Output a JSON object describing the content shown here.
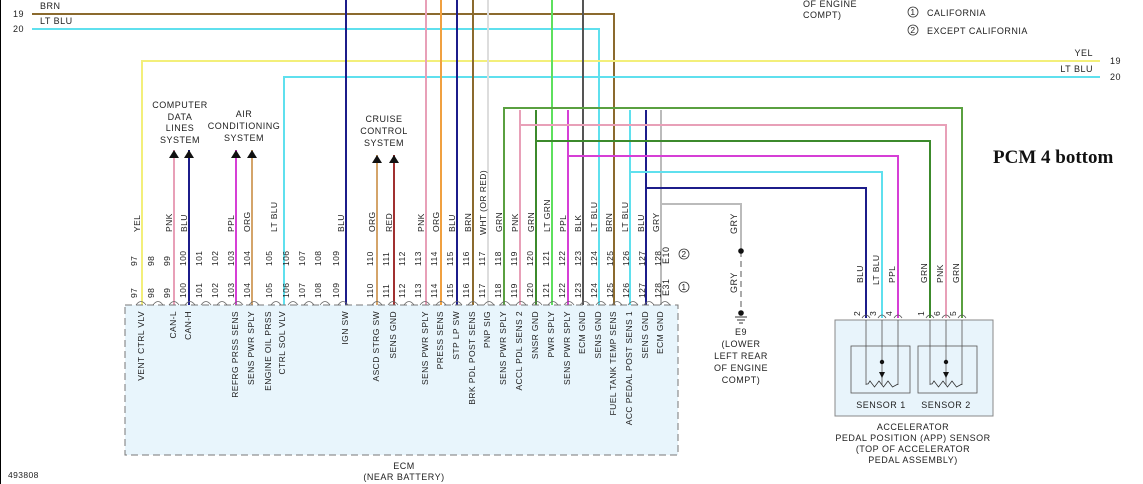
{
  "diagram_id": "493808",
  "overlay_label": "PCM 4 bottom",
  "legend": [
    {
      "marker": "1",
      "text": "CALIFORNIA"
    },
    {
      "marker": "2",
      "text": "EXCEPT CALIFORNIA"
    }
  ],
  "top_header_fragment": [
    "OF ENGINE",
    "COMPT)"
  ],
  "left_bus": [
    {
      "number": "19",
      "color_name": "BRN",
      "color": "#8b6a2e"
    },
    {
      "number": "20",
      "color_name": "LT BLU",
      "color": "#5fe0ee"
    }
  ],
  "right_bus": [
    {
      "number": "19",
      "color_name": "YEL",
      "color": "#f3ef7a"
    },
    {
      "number": "20",
      "color_name": "LT BLU",
      "color": "#5fe0ee"
    }
  ],
  "systems": [
    {
      "name": "computer-data-lines",
      "lines": [
        "COMPUTER",
        "DATA",
        "LINES",
        "SYSTEM"
      ]
    },
    {
      "name": "air-conditioning",
      "lines": [
        "AIR",
        "CONDITIONING",
        "SYSTEM"
      ]
    },
    {
      "name": "cruise-control",
      "lines": [
        "CRUISE",
        "CONTROL",
        "SYSTEM"
      ]
    }
  ],
  "ecm": {
    "title": "ECM",
    "location": "(NEAR BATTERY)",
    "pins": [
      {
        "pin": "97",
        "wire": "YEL",
        "color": "#f3ef7a",
        "function": "VENT CTRL VLV"
      },
      {
        "pin": "98",
        "wire": "",
        "color": "",
        "function": ""
      },
      {
        "pin": "99",
        "wire": "PNK",
        "color": "#e8a0b8",
        "function": "CAN-L"
      },
      {
        "pin": "100",
        "wire": "BLU",
        "color": "#1c1c8a",
        "function": "CAN-H"
      },
      {
        "pin": "101",
        "wire": "",
        "color": "",
        "function": ""
      },
      {
        "pin": "102",
        "wire": "",
        "color": "",
        "function": ""
      },
      {
        "pin": "103",
        "wire": "PPL",
        "color": "#d63fd6",
        "function": "REFRG PRSS SENS"
      },
      {
        "pin": "104",
        "wire": "ORG",
        "color": "#d4a46a",
        "function": "SENS PWR SPLY"
      },
      {
        "pin": "105",
        "wire": "LT BLU",
        "color": "#5fe0ee",
        "function": "ENGINE OIL PRSS|CTRL SOL VLV"
      },
      {
        "pin": "106",
        "wire": "",
        "color": "",
        "function": ""
      },
      {
        "pin": "107",
        "wire": "",
        "color": "",
        "function": ""
      },
      {
        "pin": "108",
        "wire": "",
        "color": "",
        "function": ""
      },
      {
        "pin": "109",
        "wire": "BLU",
        "color": "#1c1c8a",
        "function": "IGN SW"
      },
      {
        "pin": "110",
        "wire": "ORG",
        "color": "#d4a46a",
        "function": "ASCD STRG SW"
      },
      {
        "pin": "111",
        "wire": "RED",
        "color": "#a03030",
        "function": "SENS GND"
      },
      {
        "pin": "112",
        "wire": "",
        "color": "",
        "function": ""
      },
      {
        "pin": "113",
        "wire": "PNK",
        "color": "#e8a0b8",
        "function": "SENS PWR SPLY"
      },
      {
        "pin": "114",
        "wire": "ORG",
        "color": "#f0a040",
        "function": "PRESS SENS"
      },
      {
        "pin": "115",
        "wire": "BLU",
        "color": "#1c1c8a",
        "function": "STP LP SW"
      },
      {
        "pin": "116",
        "wire": "BRN",
        "color": "#8b6a2e",
        "function": "BRK PDL POST SENS"
      },
      {
        "pin": "117",
        "wire": "WHT  (OR RED)",
        "color": "#dddddd",
        "function": "PNP SIG"
      },
      {
        "pin": "118",
        "wire": "GRN",
        "color": "#5aa040",
        "function": "SENS PWR SPLY"
      },
      {
        "pin": "119",
        "wire": "PNK",
        "color": "#e8a0b8",
        "function": "ACCL PDL SENS 2"
      },
      {
        "pin": "120",
        "wire": "GRN",
        "color": "#3c8a2c",
        "function": "SNSR GND"
      },
      {
        "pin": "121",
        "wire": "LT GRN",
        "color": "#5ee05e",
        "function": "PWR SPLY"
      },
      {
        "pin": "122",
        "wire": "PPL",
        "color": "#d63fd6",
        "function": "SENS PWR SPLY"
      },
      {
        "pin": "123",
        "wire": "BLK",
        "color": "#555555",
        "function": "ECM GND"
      },
      {
        "pin": "124",
        "wire": "LT BLU",
        "color": "#5fe0ee",
        "function": "SENS GND"
      },
      {
        "pin": "125",
        "wire": "BRN",
        "color": "#8b6a2e",
        "function": "FUEL TANK TEMP SENS"
      },
      {
        "pin": "126",
        "wire": "LT BLU",
        "color": "#5fe0ee",
        "function": "ACC PEDAL POST SENS 1"
      },
      {
        "pin": "127",
        "wire": "BLU",
        "color": "#1c1c8a",
        "function": "SENS GND"
      },
      {
        "pin": "128",
        "wire": "GRY",
        "color": "#bbbbbb",
        "function": "ECM GND"
      }
    ],
    "connector_ids": [
      {
        "id": "E10",
        "marker": "2"
      },
      {
        "id": "E31",
        "marker": "1"
      }
    ]
  },
  "ground": {
    "id": "E9",
    "wire": "GRY",
    "location": [
      "(LOWER",
      "LEFT REAR",
      "OF ENGINE",
      "COMPT)"
    ]
  },
  "app_sensor": {
    "title": [
      "ACCELERATOR",
      "PEDAL POSITION (APP) SENSOR",
      "(TOP OF ACCELERATOR",
      "PEDAL ASSEMBLY)"
    ],
    "sensor_labels": [
      "SENSOR 1",
      "SENSOR 2"
    ],
    "pins": [
      {
        "pin": "2",
        "wire": "BLU",
        "color": "#1c1c8a"
      },
      {
        "pin": "3",
        "wire": "LT BLU",
        "color": "#5fe0ee"
      },
      {
        "pin": "4",
        "wire": "PPL",
        "color": "#d63fd6"
      },
      {
        "pin": "1",
        "wire": "GRN",
        "color": "#3c8a2c"
      },
      {
        "pin": "6",
        "wire": "PNK",
        "color": "#e8a0b8"
      },
      {
        "pin": "5",
        "wire": "GRN",
        "color": "#5aa040"
      }
    ]
  }
}
